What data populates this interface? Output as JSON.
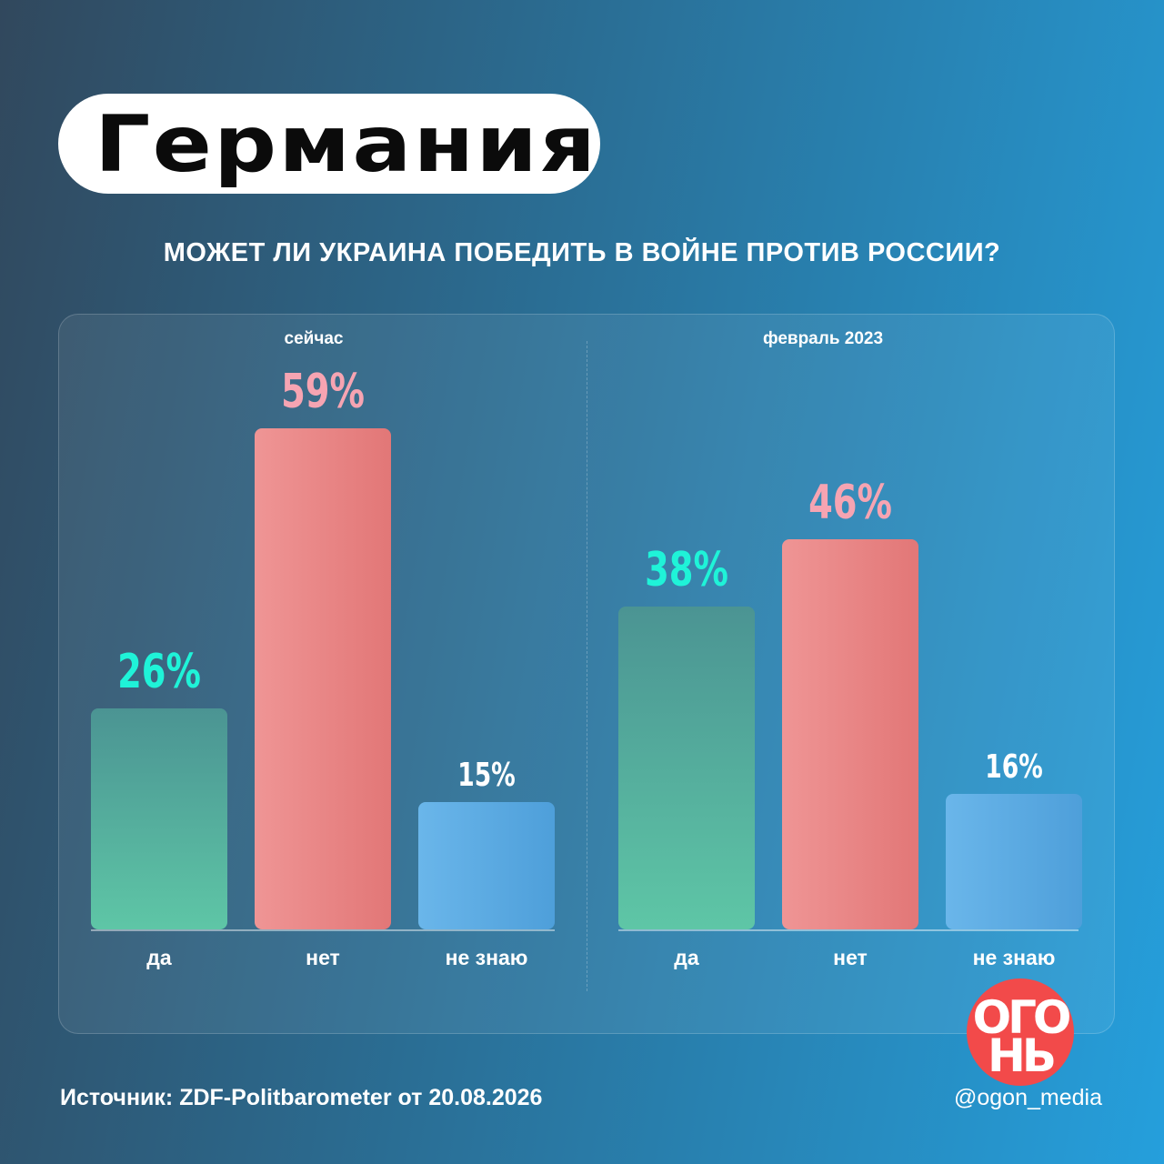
{
  "header": {
    "country": "Германия"
  },
  "question": "МОЖЕТ ЛИ УКРАИНА ПОБЕДИТЬ В ВОЙНЕ ПРОТИВ РОССИИ?",
  "footer": {
    "source": "Источник: ZDF-Politbarometer от 20.08.2026",
    "handle": "@ogon_media"
  },
  "logo": {
    "line1": "ОГО",
    "line2": "НЬ"
  },
  "colors": {
    "yes": "#5ec6a6",
    "no": "#e27777",
    "dont_know": "#4e9fda"
  },
  "chart_data": {
    "type": "bar",
    "title": "МОЖЕТ ЛИ УКРАИНА ПОБЕДИТЬ В ВОЙНЕ ПРОТИВ РОССИИ?",
    "categories": [
      "да",
      "нет",
      "не знаю"
    ],
    "unit": "%",
    "ylim": [
      0,
      60
    ],
    "groups": [
      {
        "name": "сейчас",
        "values": [
          26,
          59,
          15
        ],
        "labels": [
          "26%",
          "59%",
          "15%"
        ]
      },
      {
        "name": "февраль 2023",
        "values": [
          38,
          46,
          16
        ],
        "labels": [
          "38%",
          "46%",
          "16%"
        ]
      }
    ]
  }
}
